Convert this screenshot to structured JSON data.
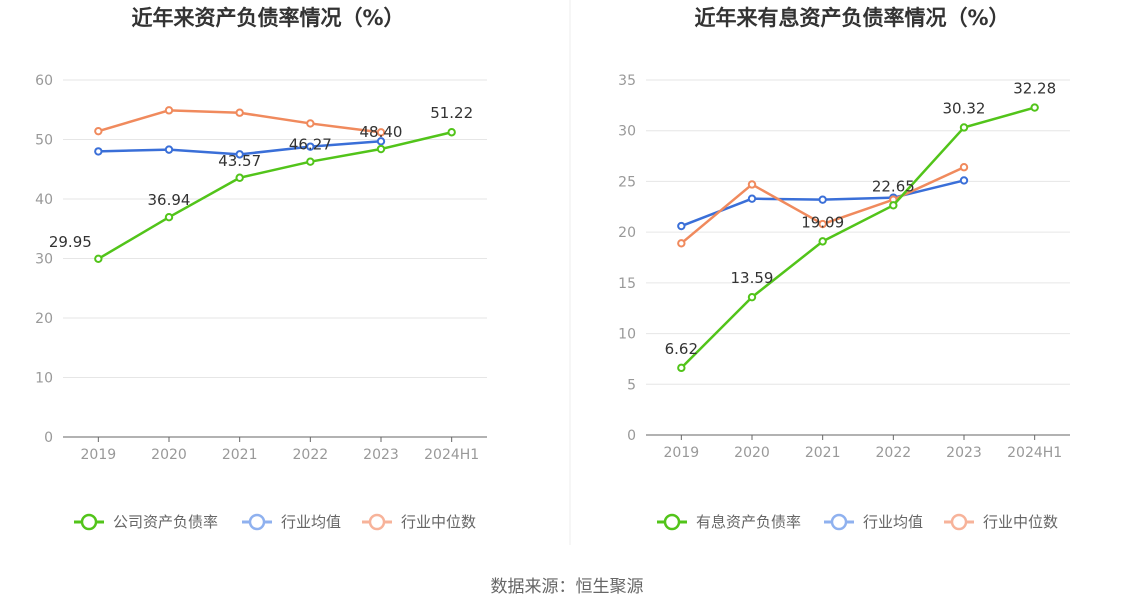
{
  "colors": {
    "company": "#52c41a",
    "industry_avg": "#3a6fd8",
    "industry_median": "#f08a5d",
    "legend_avg": "#8fb1ef",
    "legend_median": "#f7b39a",
    "grid": "#e6e6e6",
    "axis": "#666666"
  },
  "source": "数据来源：恒生聚源",
  "chart_data": [
    {
      "type": "line",
      "title": "近年来资产负债率情况（%）",
      "categories": [
        "2019",
        "2020",
        "2021",
        "2022",
        "2023",
        "2024H1"
      ],
      "ylim": [
        0,
        60
      ],
      "yticks": [
        0,
        10,
        20,
        30,
        40,
        50,
        60
      ],
      "grid": true,
      "legend_position": "bottom",
      "series": [
        {
          "name": "公司资产负债率",
          "key": "company",
          "values": [
            29.95,
            36.94,
            43.57,
            46.27,
            48.4,
            51.22
          ],
          "labels": [
            "29.95",
            "36.94",
            "43.57",
            "46.27",
            "48.40",
            "51.22"
          ]
        },
        {
          "name": "行业均值",
          "key": "industry_avg",
          "values": [
            48.0,
            48.3,
            47.5,
            48.8,
            49.7,
            null
          ]
        },
        {
          "name": "行业中位数",
          "key": "industry_median",
          "values": [
            51.4,
            54.9,
            54.5,
            52.7,
            51.2,
            null
          ]
        }
      ]
    },
    {
      "type": "line",
      "title": "近年来有息资产负债率情况（%）",
      "categories": [
        "2019",
        "2020",
        "2021",
        "2022",
        "2023",
        "2024H1"
      ],
      "ylim": [
        0,
        35
      ],
      "yticks": [
        0,
        5,
        10,
        15,
        20,
        25,
        30,
        35
      ],
      "grid": true,
      "legend_position": "bottom",
      "series": [
        {
          "name": "有息资产负债率",
          "key": "company",
          "values": [
            6.62,
            13.59,
            19.09,
            22.65,
            30.32,
            32.28
          ],
          "labels": [
            "6.62",
            "13.59",
            "19.09",
            "22.65",
            "30.32",
            "32.28"
          ]
        },
        {
          "name": "行业均值",
          "key": "industry_avg",
          "values": [
            20.6,
            23.3,
            23.2,
            23.4,
            25.1,
            null
          ]
        },
        {
          "name": "行业中位数",
          "key": "industry_median",
          "values": [
            18.9,
            24.7,
            20.8,
            23.2,
            26.4,
            null
          ]
        }
      ]
    }
  ]
}
